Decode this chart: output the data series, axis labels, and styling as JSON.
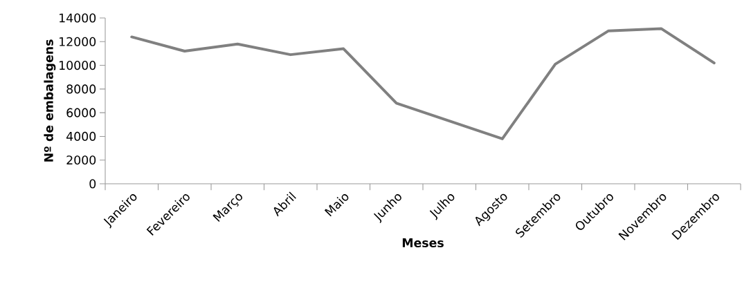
{
  "chart_data": {
    "type": "line",
    "xlabel": "Meses",
    "ylabel": "Nº de embalagens",
    "categories": [
      "Janeiro",
      "Fevereiro",
      "Março",
      "Abril",
      "Maio",
      "Junho",
      "Julho",
      "Agosto",
      "Setembro",
      "Outubro",
      "Novembro",
      "Dezembro"
    ],
    "series": [
      {
        "color": "#808080",
        "values": [
          12400,
          11200,
          11800,
          10900,
          11400,
          6800,
          5300,
          3800,
          10100,
          12900,
          13100,
          10200
        ]
      }
    ],
    "ylim": [
      0,
      14000
    ],
    "yticks": [
      0,
      2000,
      4000,
      6000,
      8000,
      10000,
      12000,
      14000
    ],
    "grid": false,
    "legend": false,
    "marker": "none",
    "line_style": "solid"
  }
}
